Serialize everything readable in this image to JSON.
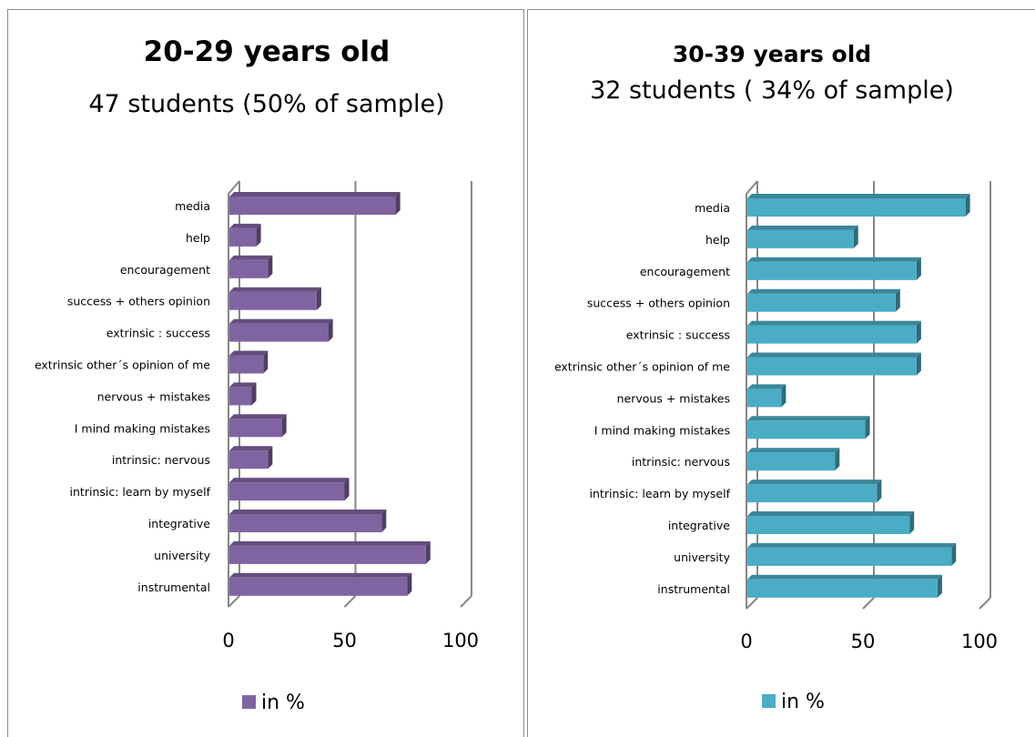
{
  "chart_data": [
    {
      "type": "bar",
      "orientation": "horizontal",
      "title": "20-29 years old",
      "subtitle": "47 students (50% of sample)",
      "categories": [
        "media",
        "help",
        "encouragement",
        "success + others opinion",
        "extrinsic : success",
        "extrinsic other´s opinion of me",
        "nervous + mistakes",
        "I mind making mistakes",
        "intrinsic: nervous",
        "intrinsic: learn by myself",
        "integrative",
        "university",
        "instrumental"
      ],
      "series": [
        {
          "name": "in %",
          "color": "#8064a2",
          "values": [
            72,
            12,
            17,
            38,
            43,
            15,
            10,
            23,
            17,
            50,
            66,
            85,
            77
          ]
        }
      ],
      "xlim": [
        0,
        100
      ],
      "xticks": [
        "0",
        "50",
        "100"
      ],
      "grid": true,
      "legend_position": "bottom"
    },
    {
      "type": "bar",
      "orientation": "horizontal",
      "title": "30-39 years old",
      "subtitle": "32 students ( 34% of sample)",
      "categories": [
        "media",
        "help",
        "encouragement",
        "success + others opinion",
        "extrinsic : success",
        "extrinsic other´s opinion of me",
        "nervous + mistakes",
        "I mind making mistakes",
        "intrinsic: nervous",
        "intrinsic: learn by myself",
        "integrative",
        "university",
        "instrumental"
      ],
      "series": [
        {
          "name": "in %",
          "color": "#4bacc6",
          "values": [
            94,
            46,
            73,
            64,
            73,
            73,
            15,
            51,
            38,
            56,
            70,
            88,
            82
          ]
        }
      ],
      "xlim": [
        0,
        100
      ],
      "xticks": [
        "0",
        "50",
        "100"
      ],
      "grid": true,
      "legend_position": "bottom"
    }
  ]
}
